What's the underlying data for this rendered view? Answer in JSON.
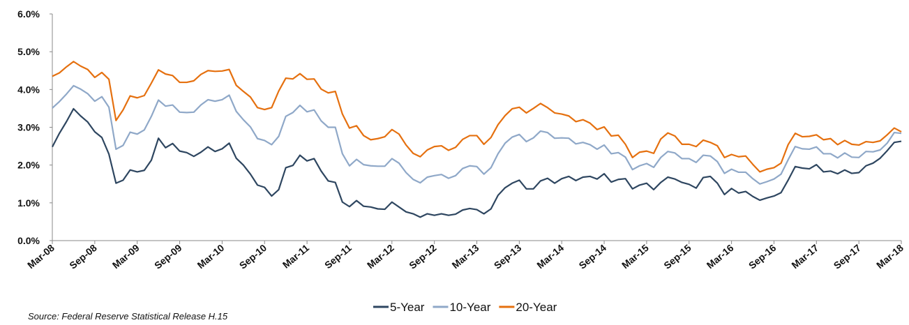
{
  "chart_data": {
    "type": "line",
    "source": "Source: Federal Reserve Statistical Release H.15",
    "categories": [
      "Mar-08",
      null,
      null,
      null,
      null,
      null,
      "Sep-08",
      null,
      null,
      null,
      null,
      null,
      "Mar-09",
      null,
      null,
      null,
      null,
      null,
      "Sep-09",
      null,
      null,
      null,
      null,
      null,
      "Mar-10",
      null,
      null,
      null,
      null,
      null,
      "Sep-10",
      null,
      null,
      null,
      null,
      null,
      "Mar-11",
      null,
      null,
      null,
      null,
      null,
      "Sep-11",
      null,
      null,
      null,
      null,
      null,
      "Mar-12",
      null,
      null,
      null,
      null,
      null,
      "Sep-12",
      null,
      null,
      null,
      null,
      null,
      "Mar-13",
      null,
      null,
      null,
      null,
      null,
      "Sep-13",
      null,
      null,
      null,
      null,
      null,
      "Mar-14",
      null,
      null,
      null,
      null,
      null,
      "Sep-14",
      null,
      null,
      null,
      null,
      null,
      "Mar-15",
      null,
      null,
      null,
      null,
      null,
      "Sep-15",
      null,
      null,
      null,
      null,
      null,
      "Mar-16",
      null,
      null,
      null,
      null,
      null,
      "Sep-16",
      null,
      null,
      null,
      null,
      null,
      "Mar-17",
      null,
      null,
      null,
      null,
      null,
      "Sep-17",
      null,
      null,
      null,
      null,
      null,
      "Mar-18"
    ],
    "series": [
      {
        "name": "5-Year",
        "color": "#2e4660",
        "values": [
          2.48,
          2.84,
          3.15,
          3.49,
          3.3,
          3.14,
          2.88,
          2.73,
          2.29,
          1.52,
          1.6,
          1.87,
          1.82,
          1.86,
          2.13,
          2.71,
          2.46,
          2.57,
          2.37,
          2.33,
          2.23,
          2.34,
          2.48,
          2.36,
          2.43,
          2.58,
          2.18,
          2.0,
          1.76,
          1.47,
          1.41,
          1.18,
          1.35,
          1.93,
          1.99,
          2.26,
          2.11,
          2.17,
          1.84,
          1.58,
          1.54,
          1.02,
          0.9,
          1.06,
          0.91,
          0.89,
          0.84,
          0.83,
          1.02,
          0.89,
          0.76,
          0.71,
          0.62,
          0.71,
          0.67,
          0.71,
          0.67,
          0.7,
          0.81,
          0.85,
          0.82,
          0.71,
          0.84,
          1.2,
          1.4,
          1.52,
          1.6,
          1.37,
          1.37,
          1.58,
          1.65,
          1.52,
          1.64,
          1.7,
          1.59,
          1.68,
          1.7,
          1.63,
          1.77,
          1.55,
          1.62,
          1.64,
          1.37,
          1.47,
          1.52,
          1.35,
          1.54,
          1.68,
          1.63,
          1.54,
          1.49,
          1.39,
          1.67,
          1.7,
          1.52,
          1.22,
          1.38,
          1.26,
          1.3,
          1.17,
          1.07,
          1.13,
          1.18,
          1.27,
          1.6,
          1.96,
          1.92,
          1.9,
          2.01,
          1.82,
          1.84,
          1.77,
          1.87,
          1.78,
          1.8,
          1.98,
          2.05,
          2.18,
          2.38,
          2.6,
          2.63
        ]
      },
      {
        "name": "10-Year",
        "color": "#8fa8c8",
        "values": [
          3.51,
          3.68,
          3.88,
          4.1,
          4.01,
          3.89,
          3.69,
          3.81,
          3.53,
          2.42,
          2.52,
          2.87,
          2.82,
          2.93,
          3.29,
          3.72,
          3.56,
          3.59,
          3.4,
          3.39,
          3.4,
          3.59,
          3.73,
          3.69,
          3.73,
          3.85,
          3.42,
          3.2,
          3.01,
          2.7,
          2.65,
          2.54,
          2.76,
          3.29,
          3.39,
          3.58,
          3.41,
          3.46,
          3.17,
          3.0,
          3.0,
          2.3,
          1.98,
          2.15,
          2.01,
          1.98,
          1.97,
          1.97,
          2.17,
          2.05,
          1.8,
          1.62,
          1.53,
          1.68,
          1.72,
          1.75,
          1.65,
          1.72,
          1.91,
          1.98,
          1.96,
          1.76,
          1.93,
          2.3,
          2.58,
          2.74,
          2.81,
          2.62,
          2.72,
          2.9,
          2.86,
          2.71,
          2.72,
          2.71,
          2.56,
          2.6,
          2.54,
          2.42,
          2.53,
          2.3,
          2.33,
          2.21,
          1.88,
          1.98,
          2.04,
          1.94,
          2.2,
          2.36,
          2.32,
          2.17,
          2.17,
          2.07,
          2.26,
          2.24,
          2.09,
          1.78,
          1.89,
          1.81,
          1.81,
          1.64,
          1.5,
          1.56,
          1.63,
          1.76,
          2.14,
          2.49,
          2.43,
          2.42,
          2.48,
          2.3,
          2.3,
          2.19,
          2.32,
          2.21,
          2.2,
          2.36,
          2.35,
          2.4,
          2.58,
          2.86,
          2.84
        ]
      },
      {
        "name": "20-Year",
        "color": "#e5700f",
        "values": [
          4.35,
          4.44,
          4.6,
          4.74,
          4.62,
          4.53,
          4.32,
          4.45,
          4.27,
          3.18,
          3.46,
          3.83,
          3.78,
          3.84,
          4.17,
          4.52,
          4.41,
          4.37,
          4.19,
          4.19,
          4.23,
          4.4,
          4.5,
          4.48,
          4.49,
          4.53,
          4.11,
          3.95,
          3.8,
          3.52,
          3.47,
          3.52,
          3.96,
          4.3,
          4.28,
          4.42,
          4.27,
          4.28,
          4.01,
          3.91,
          3.95,
          3.35,
          2.98,
          3.04,
          2.78,
          2.67,
          2.7,
          2.75,
          2.94,
          2.82,
          2.53,
          2.31,
          2.22,
          2.4,
          2.49,
          2.51,
          2.39,
          2.47,
          2.68,
          2.78,
          2.78,
          2.55,
          2.73,
          3.07,
          3.31,
          3.49,
          3.53,
          3.38,
          3.5,
          3.63,
          3.52,
          3.38,
          3.35,
          3.3,
          3.15,
          3.2,
          3.11,
          2.94,
          3.01,
          2.77,
          2.79,
          2.55,
          2.2,
          2.34,
          2.37,
          2.31,
          2.69,
          2.85,
          2.77,
          2.55,
          2.55,
          2.49,
          2.66,
          2.6,
          2.51,
          2.2,
          2.28,
          2.22,
          2.24,
          2.02,
          1.82,
          1.89,
          1.93,
          2.05,
          2.54,
          2.84,
          2.75,
          2.76,
          2.8,
          2.67,
          2.7,
          2.54,
          2.65,
          2.55,
          2.53,
          2.62,
          2.6,
          2.64,
          2.8,
          2.98,
          2.88
        ]
      }
    ],
    "ylim": [
      0,
      6
    ],
    "yticks": [
      {
        "value": 0,
        "label": "0.0%"
      },
      {
        "value": 1,
        "label": "1.0%"
      },
      {
        "value": 2,
        "label": "2.0%"
      },
      {
        "value": 3,
        "label": "3.0%"
      },
      {
        "value": 4,
        "label": "4.0%"
      },
      {
        "value": 5,
        "label": "5.0%"
      },
      {
        "value": 6,
        "label": "6.0%"
      }
    ],
    "grid": false,
    "legend": "bottom"
  }
}
